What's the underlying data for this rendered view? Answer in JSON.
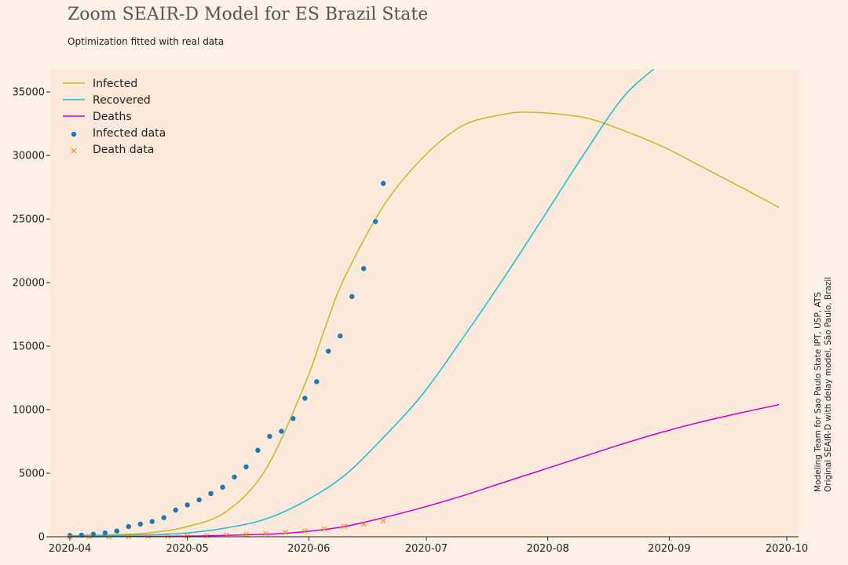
{
  "header": {
    "title": "Zoom SEAIR-D Model for ES Brazil State",
    "subtitle": "Optimization fitted with real data"
  },
  "credit": {
    "line1": "Modeling Team for Sao Paulo State IPT, USP, ATS",
    "line2": "Original SEAIR-D with delay model, São Paulo, Brazil"
  },
  "chart_data": {
    "type": "line",
    "title": "Zoom SEAIR-D Model for ES Brazil State",
    "subtitle": "Optimization fitted with real data",
    "xlabel": "",
    "ylabel": "",
    "xlim": [
      "2020-03-27",
      "2020-10-04"
    ],
    "ylim": [
      0,
      36800
    ],
    "x_ticks": [
      "2020-04",
      "2020-05",
      "2020-06",
      "2020-07",
      "2020-08",
      "2020-09",
      "2020-10"
    ],
    "y_ticks": [
      0,
      5000,
      10000,
      15000,
      20000,
      25000,
      30000,
      35000
    ],
    "grid": false,
    "legend_position": "top-left",
    "series": [
      {
        "name": "Infected",
        "kind": "line",
        "color": "#bcbd22",
        "x": [
          "2020-04-01",
          "2020-04-11",
          "2020-04-21",
          "2020-05-01",
          "2020-05-11",
          "2020-05-21",
          "2020-05-31",
          "2020-06-05",
          "2020-06-10",
          "2020-06-20",
          "2020-06-30",
          "2020-07-10",
          "2020-07-20",
          "2020-07-28",
          "2020-08-10",
          "2020-08-20",
          "2020-08-31",
          "2020-09-10",
          "2020-09-20",
          "2020-09-29"
        ],
        "y": [
          100,
          150,
          300,
          800,
          2000,
          5300,
          12000,
          16300,
          20300,
          26000,
          29800,
          32300,
          33200,
          33400,
          33000,
          32000,
          30600,
          29000,
          27400,
          25900
        ]
      },
      {
        "name": "Recovered",
        "kind": "line",
        "color": "#17becf",
        "x": [
          "2020-04-01",
          "2020-04-21",
          "2020-05-01",
          "2020-05-11",
          "2020-05-21",
          "2020-05-31",
          "2020-06-10",
          "2020-06-20",
          "2020-06-30",
          "2020-07-10",
          "2020-07-20",
          "2020-07-31",
          "2020-08-10",
          "2020-08-20",
          "2020-08-28"
        ],
        "y": [
          50,
          150,
          300,
          700,
          1400,
          2800,
          4800,
          7800,
          11200,
          15500,
          20000,
          25200,
          30000,
          34500,
          36800
        ]
      },
      {
        "name": "Deaths",
        "kind": "line",
        "color": "#c700c7",
        "x": [
          "2020-04-01",
          "2020-05-01",
          "2020-05-21",
          "2020-05-31",
          "2020-06-10",
          "2020-06-20",
          "2020-06-30",
          "2020-07-10",
          "2020-07-20",
          "2020-07-31",
          "2020-08-10",
          "2020-08-20",
          "2020-08-31",
          "2020-09-10",
          "2020-09-20",
          "2020-09-29"
        ],
        "y": [
          0,
          50,
          200,
          400,
          800,
          1500,
          2300,
          3200,
          4200,
          5300,
          6300,
          7300,
          8300,
          9100,
          9800,
          10400
        ]
      },
      {
        "name": "Infected data",
        "kind": "scatter",
        "marker": "circle",
        "color": "#1f77b4",
        "x": [
          "2020-04-01",
          "2020-04-04",
          "2020-04-07",
          "2020-04-10",
          "2020-04-13",
          "2020-04-16",
          "2020-04-19",
          "2020-04-22",
          "2020-04-25",
          "2020-04-28",
          "2020-05-01",
          "2020-05-04",
          "2020-05-07",
          "2020-05-10",
          "2020-05-13",
          "2020-05-16",
          "2020-05-19",
          "2020-05-22",
          "2020-05-25",
          "2020-05-28",
          "2020-05-31",
          "2020-06-03",
          "2020-06-06",
          "2020-06-09",
          "2020-06-12",
          "2020-06-15",
          "2020-06-18",
          "2020-06-20"
        ],
        "y": [
          100,
          130,
          200,
          300,
          450,
          800,
          1000,
          1200,
          1500,
          2100,
          2500,
          2900,
          3400,
          3900,
          4700,
          5500,
          6800,
          7900,
          8300,
          9300,
          10900,
          12200,
          14600,
          15800,
          18900,
          21100,
          24800,
          27800
        ]
      },
      {
        "name": "Death data",
        "kind": "scatter",
        "marker": "x",
        "color": "#ff7f0e",
        "x": [
          "2020-04-01",
          "2020-04-06",
          "2020-04-11",
          "2020-04-16",
          "2020-04-21",
          "2020-04-26",
          "2020-05-01",
          "2020-05-06",
          "2020-05-11",
          "2020-05-16",
          "2020-05-21",
          "2020-05-26",
          "2020-05-31",
          "2020-06-05",
          "2020-06-10",
          "2020-06-15",
          "2020-06-20"
        ],
        "y": [
          2,
          5,
          10,
          20,
          30,
          45,
          65,
          95,
          130,
          180,
          250,
          340,
          450,
          620,
          820,
          1000,
          1250
        ]
      }
    ]
  }
}
